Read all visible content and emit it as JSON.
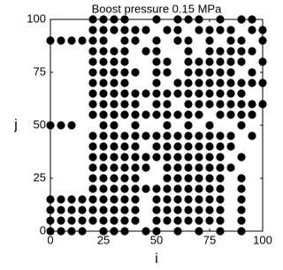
{
  "chart_data": {
    "type": "scatter",
    "title": "Boost pressure 0.15 MPa",
    "x_label": "i",
    "y_label": "j",
    "color": "#000000",
    "xlim": [
      0,
      100
    ],
    "ylim": [
      0,
      100
    ],
    "xticks": [
      0,
      25,
      50,
      75,
      100
    ],
    "yticks": [
      0,
      25,
      50,
      75,
      100
    ],
    "x": [
      20,
      25,
      30,
      35,
      50,
      60,
      65,
      70,
      80,
      90,
      95,
      20,
      25,
      30,
      35,
      40,
      45,
      55,
      60,
      70,
      75,
      80,
      85,
      95,
      100,
      0,
      5,
      10,
      15,
      20,
      25,
      35,
      40,
      50,
      60,
      65,
      75,
      85,
      90,
      100,
      20,
      25,
      30,
      35,
      45,
      50,
      65,
      75,
      80,
      85,
      90,
      95,
      20,
      25,
      30,
      35,
      50,
      55,
      65,
      70,
      75,
      80,
      85,
      90,
      100,
      20,
      25,
      30,
      35,
      40,
      50,
      55,
      65,
      70,
      75,
      80,
      85,
      95,
      20,
      25,
      30,
      35,
      50,
      60,
      65,
      70,
      75,
      80,
      85,
      90,
      95,
      100,
      20,
      25,
      30,
      35,
      40,
      45,
      50,
      55,
      60,
      65,
      70,
      75,
      80,
      85,
      90,
      20,
      25,
      30,
      35,
      40,
      50,
      55,
      65,
      70,
      75,
      80,
      85,
      90,
      95,
      100,
      20,
      25,
      30,
      35,
      40,
      45,
      50,
      55,
      60,
      65,
      70,
      80,
      85,
      90,
      95,
      0,
      5,
      10,
      25,
      30,
      40,
      55,
      65,
      75,
      90,
      20,
      25,
      30,
      35,
      40,
      45,
      50,
      55,
      60,
      65,
      70,
      75,
      80,
      85,
      95,
      20,
      25,
      30,
      35,
      40,
      50,
      55,
      60,
      65,
      70,
      75,
      80,
      85,
      20,
      25,
      30,
      35,
      40,
      45,
      50,
      55,
      60,
      65,
      70,
      75,
      80,
      90,
      20,
      25,
      30,
      35,
      40,
      45,
      55,
      60,
      65,
      70,
      75,
      80,
      85,
      20,
      25,
      30,
      35,
      40,
      55,
      60,
      65,
      70,
      75,
      80,
      90,
      20,
      25,
      30,
      35,
      40,
      45,
      50,
      55,
      60,
      65,
      70,
      75,
      80,
      90,
      0,
      5,
      10,
      15,
      20,
      25,
      30,
      35,
      40,
      50,
      55,
      60,
      65,
      70,
      75,
      80,
      90,
      0,
      5,
      10,
      15,
      20,
      25,
      30,
      35,
      40,
      50,
      55,
      60,
      65,
      70,
      75,
      80,
      90,
      0,
      5,
      10,
      15,
      20,
      25,
      30,
      35,
      40,
      50,
      55,
      60,
      65,
      70,
      75,
      80,
      90,
      0,
      5,
      10,
      15,
      25,
      30,
      35,
      45,
      50,
      60,
      70,
      80,
      90
    ],
    "values": [
      100,
      100,
      100,
      100,
      100,
      100,
      100,
      100,
      100,
      100,
      100,
      95,
      95,
      95,
      95,
      95,
      95,
      95,
      95,
      95,
      95,
      95,
      95,
      95,
      95,
      90,
      90,
      90,
      90,
      90,
      90,
      90,
      90,
      90,
      90,
      90,
      90,
      90,
      90,
      90,
      85,
      85,
      85,
      85,
      85,
      85,
      85,
      85,
      85,
      85,
      85,
      85,
      80,
      80,
      80,
      80,
      80,
      80,
      80,
      80,
      80,
      80,
      80,
      80,
      80,
      75,
      75,
      75,
      75,
      75,
      75,
      75,
      75,
      75,
      75,
      75,
      75,
      75,
      70,
      70,
      70,
      70,
      70,
      70,
      70,
      70,
      70,
      70,
      70,
      70,
      70,
      70,
      65,
      65,
      65,
      65,
      65,
      65,
      65,
      65,
      65,
      65,
      65,
      65,
      65,
      65,
      65,
      60,
      60,
      60,
      60,
      60,
      60,
      60,
      60,
      60,
      60,
      60,
      60,
      60,
      60,
      60,
      55,
      55,
      55,
      55,
      55,
      55,
      55,
      55,
      55,
      55,
      55,
      55,
      55,
      55,
      55,
      50,
      50,
      50,
      50,
      50,
      50,
      50,
      50,
      50,
      50,
      45,
      45,
      45,
      45,
      45,
      45,
      45,
      45,
      45,
      45,
      45,
      45,
      45,
      45,
      45,
      40,
      40,
      40,
      40,
      40,
      40,
      40,
      40,
      40,
      40,
      40,
      40,
      40,
      35,
      35,
      35,
      35,
      35,
      35,
      35,
      35,
      35,
      35,
      35,
      35,
      35,
      35,
      30,
      30,
      30,
      30,
      30,
      30,
      30,
      30,
      30,
      30,
      30,
      30,
      30,
      25,
      25,
      25,
      25,
      25,
      25,
      25,
      25,
      25,
      25,
      25,
      25,
      20,
      20,
      20,
      20,
      20,
      20,
      20,
      20,
      20,
      20,
      20,
      20,
      20,
      20,
      15,
      15,
      15,
      15,
      15,
      15,
      15,
      15,
      15,
      15,
      15,
      15,
      15,
      15,
      15,
      15,
      15,
      10,
      10,
      10,
      10,
      10,
      10,
      10,
      10,
      10,
      10,
      10,
      10,
      10,
      10,
      10,
      10,
      10,
      5,
      5,
      5,
      5,
      5,
      5,
      5,
      5,
      5,
      5,
      5,
      5,
      5,
      5,
      5,
      5,
      5,
      0,
      0,
      0,
      0,
      0,
      0,
      0,
      0,
      0,
      0,
      0,
      0,
      0
    ]
  }
}
